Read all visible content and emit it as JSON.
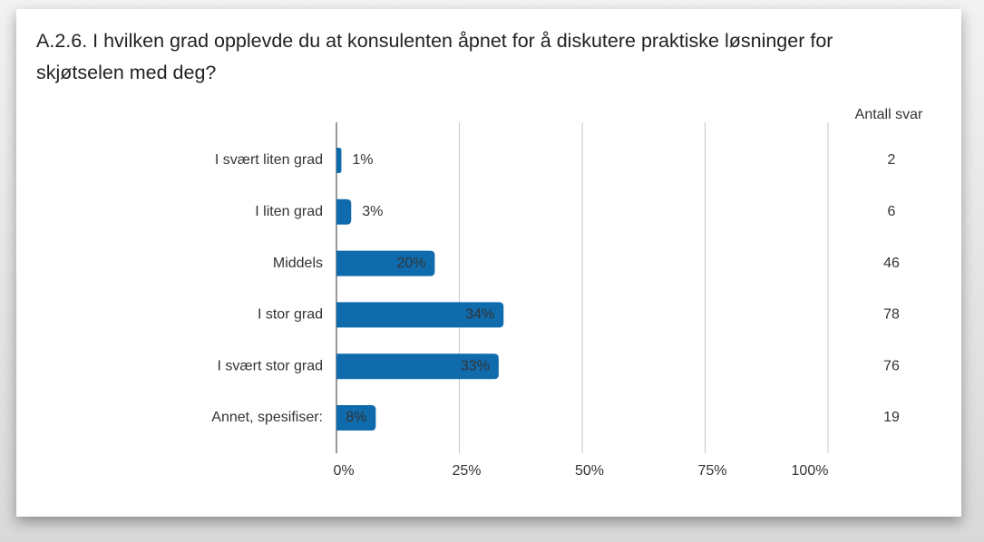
{
  "chart_data": {
    "type": "bar",
    "orientation": "horizontal",
    "title": "A.2.6. I hvilken grad opplevde du at konsulenten åpnet for å diskutere praktiske løsninger for skjøtselen med deg?",
    "categories": [
      "I svært liten grad",
      "I liten grad",
      "Middels",
      "I stor grad",
      "I svært stor grad",
      "Annet, spesifiser:"
    ],
    "values": [
      1,
      3,
      20,
      34,
      33,
      8
    ],
    "value_labels": [
      "1%",
      "3%",
      "20%",
      "34%",
      "33%",
      "8%"
    ],
    "color": "#0f6bac",
    "count_header": "Antall svar",
    "counts": [
      2,
      6,
      46,
      78,
      76,
      19
    ],
    "xlim": [
      0,
      100
    ],
    "xticks": [
      {
        "value": 0,
        "label": "0%"
      },
      {
        "value": 25,
        "label": "25%"
      },
      {
        "value": 50,
        "label": "50%"
      },
      {
        "value": 75,
        "label": "75%"
      },
      {
        "value": 100,
        "label": "100%"
      }
    ],
    "grid": true
  }
}
